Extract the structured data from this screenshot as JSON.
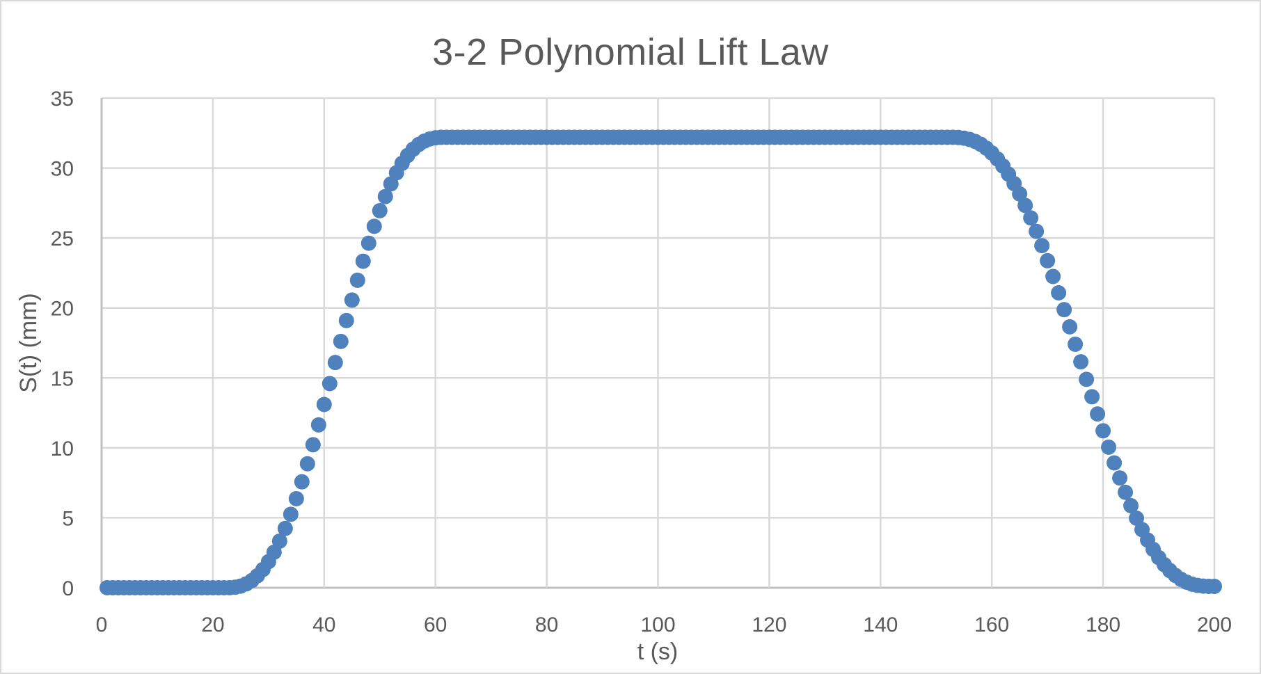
{
  "chart_data": {
    "type": "scatter",
    "title": "3-2  Polynomial Lift Law",
    "xlabel": "t (s)",
    "ylabel": "S(t) (mm)",
    "xlim": [
      0,
      200
    ],
    "ylim": [
      0,
      35
    ],
    "xticks": [
      0,
      20,
      40,
      60,
      80,
      100,
      120,
      140,
      160,
      180,
      200
    ],
    "yticks": [
      0,
      5,
      10,
      15,
      20,
      25,
      30,
      35
    ],
    "grid": true,
    "legend": "none",
    "marker_color": "#4f81bd",
    "series": [
      {
        "name": "S(t)",
        "description": "Dwell S=0 for t=1..22, 3-4-5 polynomial rise t=22..62 to 32.2 mm, dwell 32.2 mm t=62..152, polynomial return t=152..200 to 0",
        "x_range": [
          1,
          200
        ],
        "x_step": 1,
        "segments": [
          {
            "phase": "dwell-low",
            "t": [
              1,
              22
            ],
            "s": 0
          },
          {
            "phase": "rise",
            "t": [
              22,
              62
            ],
            "s": [
              0,
              32.2
            ]
          },
          {
            "phase": "dwell-high",
            "t": [
              62,
              152
            ],
            "s": 32.2
          },
          {
            "phase": "return",
            "t": [
              152,
              200
            ],
            "s": [
              32.2,
              0
            ]
          }
        ],
        "sample_points": [
          [
            1,
            0
          ],
          [
            10,
            0
          ],
          [
            20,
            0
          ],
          [
            22,
            0
          ],
          [
            25,
            0.7
          ],
          [
            30,
            3.6
          ],
          [
            35,
            8.0
          ],
          [
            40,
            14.5
          ],
          [
            42,
            17.0
          ],
          [
            45,
            20.5
          ],
          [
            50,
            26.0
          ],
          [
            55,
            30.0
          ],
          [
            60,
            32.0
          ],
          [
            62,
            32.2
          ],
          [
            80,
            32.2
          ],
          [
            100,
            32.2
          ],
          [
            120,
            32.2
          ],
          [
            140,
            32.2
          ],
          [
            152,
            32.2
          ],
          [
            155,
            31.9
          ],
          [
            160,
            30.0
          ],
          [
            165,
            26.5
          ],
          [
            170,
            22.0
          ],
          [
            175,
            17.5
          ],
          [
            180,
            13.0
          ],
          [
            185,
            8.5
          ],
          [
            190,
            4.5
          ],
          [
            195,
            1.5
          ],
          [
            200,
            0.1
          ]
        ]
      }
    ]
  }
}
